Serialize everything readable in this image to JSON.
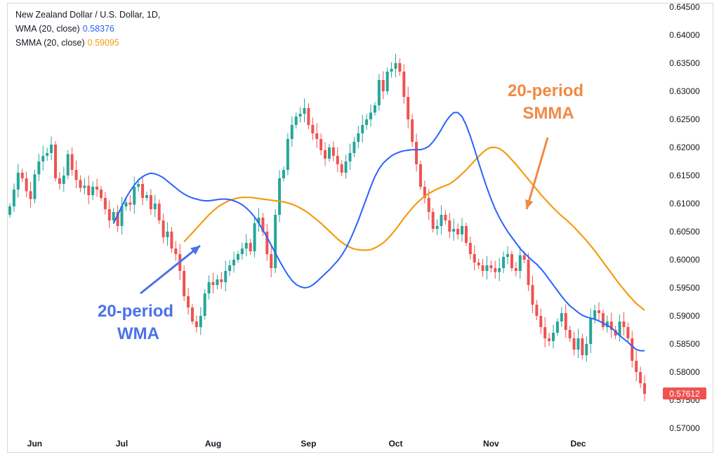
{
  "legend": {
    "symbol": "New Zealand Dollar / U.S. Dollar, 1D,",
    "wma_label": "WMA (20, close)",
    "wma_value": "0.58376",
    "smma_label": "SMMA (20, close)",
    "smma_value": "0.59095"
  },
  "colors": {
    "up": "#26a69a",
    "down": "#ef5350",
    "wma": "#2962ff",
    "smma": "#f39c12",
    "annot_wma": "#4a72e8",
    "annot_smma": "#f08a45",
    "last_price_bg": "#ef5350"
  },
  "chart_data": {
    "type": "candlestick",
    "ylim": [
      0.565,
      0.645
    ],
    "y_ticks": [
      "0.64500",
      "0.64000",
      "0.63500",
      "0.63000",
      "0.62500",
      "0.62000",
      "0.61500",
      "0.61000",
      "0.60500",
      "0.60000",
      "0.59500",
      "0.59000",
      "0.58500",
      "0.58000",
      "0.57500",
      "0.57000"
    ],
    "y_tick_values": [
      0.645,
      0.64,
      0.635,
      0.63,
      0.625,
      0.62,
      0.615,
      0.61,
      0.605,
      0.6,
      0.595,
      0.59,
      0.585,
      0.58,
      0.575,
      0.57
    ],
    "x_labels": [
      {
        "label": "Jun",
        "index": 6
      },
      {
        "label": "Jul",
        "index": 27
      },
      {
        "label": "Aug",
        "index": 49
      },
      {
        "label": "Sep",
        "index": 72
      },
      {
        "label": "Oct",
        "index": 93
      },
      {
        "label": "Nov",
        "index": 116
      },
      {
        "label": "Dec",
        "index": 137
      }
    ],
    "last_price": "0.57612",
    "last_price_value": 0.57612,
    "close": [
      0.6095,
      0.6125,
      0.6155,
      0.6145,
      0.6122,
      0.6108,
      0.6152,
      0.6175,
      0.6185,
      0.619,
      0.6205,
      0.6145,
      0.6135,
      0.615,
      0.6188,
      0.616,
      0.6142,
      0.6128,
      0.6132,
      0.6115,
      0.613,
      0.6125,
      0.611,
      0.609,
      0.607,
      0.6085,
      0.606,
      0.6095,
      0.6102,
      0.6098,
      0.613,
      0.6135,
      0.611,
      0.6115,
      0.609,
      0.61,
      0.607,
      0.604,
      0.605,
      0.602,
      0.601,
      0.598,
      0.5935,
      0.5915,
      0.589,
      0.588,
      0.59,
      0.594,
      0.596,
      0.5955,
      0.5965,
      0.596,
      0.598,
      0.599,
      0.6,
      0.601,
      0.602,
      0.603,
      0.6015,
      0.6065,
      0.6075,
      0.605,
      0.601,
      0.5985,
      0.608,
      0.6145,
      0.616,
      0.6215,
      0.624,
      0.6255,
      0.626,
      0.627,
      0.624,
      0.6225,
      0.6215,
      0.6195,
      0.618,
      0.62,
      0.6185,
      0.617,
      0.6155,
      0.6175,
      0.619,
      0.621,
      0.6225,
      0.624,
      0.625,
      0.6262,
      0.6275,
      0.632,
      0.63,
      0.6335,
      0.634,
      0.635,
      0.6335,
      0.629,
      0.625,
      0.621,
      0.617,
      0.613,
      0.611,
      0.6085,
      0.6055,
      0.606,
      0.608,
      0.607,
      0.605,
      0.6055,
      0.6045,
      0.606,
      0.603,
      0.601,
      0.5995,
      0.599,
      0.598,
      0.599,
      0.5985,
      0.5978,
      0.5985,
      0.6005,
      0.601,
      0.5985,
      0.598,
      0.6008,
      0.6,
      0.5955,
      0.592,
      0.59,
      0.588,
      0.586,
      0.5855,
      0.587,
      0.589,
      0.5905,
      0.5875,
      0.586,
      0.584,
      0.586,
      0.583,
      0.585,
      0.5895,
      0.591,
      0.5905,
      0.588,
      0.589,
      0.5875,
      0.5865,
      0.589,
      0.588,
      0.586,
      0.582,
      0.58,
      0.578,
      0.5761
    ],
    "wma": [
      0.6065,
      0.608,
      0.6095,
      0.611,
      0.6122,
      0.6133,
      0.6142,
      0.6148,
      0.6152,
      0.6154,
      0.6153,
      0.615,
      0.6146,
      0.614,
      0.6134,
      0.6128,
      0.6122,
      0.6117,
      0.6113,
      0.611,
      0.6108,
      0.6106,
      0.6105,
      0.6105,
      0.6106,
      0.6107,
      0.6108,
      0.6108,
      0.6107,
      0.6105,
      0.6102,
      0.6098,
      0.6092,
      0.6085,
      0.6076,
      0.6065,
      0.6053,
      0.604,
      0.6026,
      0.6012,
      0.5998,
      0.5985,
      0.5973,
      0.5963,
      0.5956,
      0.5952,
      0.595,
      0.5951,
      0.5955,
      0.5961,
      0.5968,
      0.5975,
      0.5982,
      0.599,
      0.5998,
      0.6008,
      0.602,
      0.6035,
      0.6052,
      0.607,
      0.609,
      0.611,
      0.613,
      0.6148,
      0.6162,
      0.6172,
      0.6179,
      0.6185,
      0.6189,
      0.6192,
      0.6194,
      0.6195,
      0.6196,
      0.6196,
      0.6196,
      0.6198,
      0.6202,
      0.621,
      0.622,
      0.6232,
      0.6245,
      0.6255,
      0.6262,
      0.6262,
      0.6255,
      0.624,
      0.622,
      0.6197,
      0.6173,
      0.615,
      0.6128,
      0.6108,
      0.609,
      0.6075,
      0.6062,
      0.605,
      0.604,
      0.603,
      0.602,
      0.6012,
      0.6005,
      0.5998,
      0.5992,
      0.5984,
      0.5975,
      0.5965,
      0.5955,
      0.5945,
      0.5935,
      0.5926,
      0.5918,
      0.5912,
      0.5906,
      0.5901,
      0.5898,
      0.5896,
      0.5894,
      0.5891,
      0.5887,
      0.5883,
      0.5879,
      0.5872,
      0.5865,
      0.5859,
      0.5853,
      0.5846,
      0.584,
      0.5838,
      0.5838
    ],
    "smma": [
      0.6032,
      0.604,
      0.6048,
      0.6056,
      0.6064,
      0.6072,
      0.608,
      0.6087,
      0.6093,
      0.6098,
      0.6102,
      0.6106,
      0.6108,
      0.611,
      0.6111,
      0.6111,
      0.6111,
      0.611,
      0.6109,
      0.6108,
      0.6107,
      0.6106,
      0.6105,
      0.6104,
      0.6103,
      0.6101,
      0.6099,
      0.6096,
      0.6092,
      0.6088,
      0.6083,
      0.6077,
      0.6071,
      0.6065,
      0.6058,
      0.6051,
      0.6044,
      0.6037,
      0.6031,
      0.6026,
      0.6022,
      0.6019,
      0.6018,
      0.6017,
      0.6017,
      0.6018,
      0.6021,
      0.6025,
      0.603,
      0.6037,
      0.6045,
      0.6054,
      0.6064,
      0.6074,
      0.6083,
      0.6092,
      0.61,
      0.6107,
      0.6113,
      0.6118,
      0.6122,
      0.6126,
      0.6129,
      0.6132,
      0.6135,
      0.614,
      0.6146,
      0.6153,
      0.616,
      0.6168,
      0.6176,
      0.6184,
      0.6191,
      0.6197,
      0.62,
      0.62,
      0.6198,
      0.6193,
      0.6186,
      0.6178,
      0.617,
      0.6161,
      0.6152,
      0.6143,
      0.6134,
      0.6125,
      0.6116,
      0.6108,
      0.61,
      0.6092,
      0.6085,
      0.6078,
      0.6072,
      0.6065,
      0.6058,
      0.605,
      0.6042,
      0.6034,
      0.6025,
      0.6016,
      0.6006,
      0.5996,
      0.5986,
      0.5976,
      0.5966,
      0.5956,
      0.5947,
      0.5938,
      0.593,
      0.5922,
      0.5916,
      0.591
    ]
  },
  "annotations": {
    "wma_line1": "20-period",
    "wma_line2": "WMA",
    "smma_line1": "20-period",
    "smma_line2": "SMMA"
  }
}
